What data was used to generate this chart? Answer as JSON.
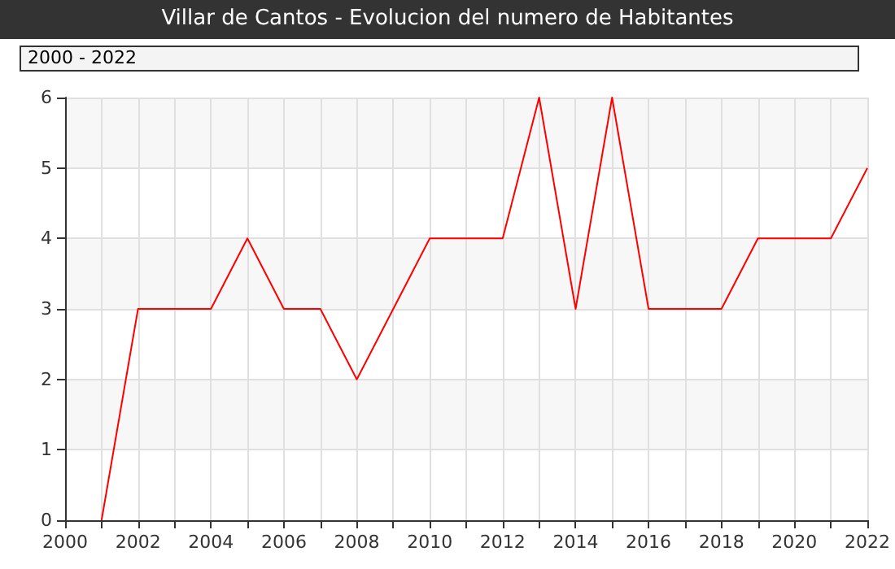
{
  "chart_data": {
    "type": "line",
    "title": "Villar de Cantos - Evolucion del numero de Habitantes",
    "annotations": [
      "2000 - 2022"
    ],
    "x": [
      2001,
      2002,
      2003,
      2004,
      2005,
      2006,
      2007,
      2008,
      2009,
      2010,
      2011,
      2012,
      2013,
      2014,
      2015,
      2016,
      2017,
      2018,
      2019,
      2020,
      2021,
      2022
    ],
    "series": [
      {
        "color": "#ff0000",
        "values": [
          0,
          3,
          3,
          3,
          4,
          3,
          3,
          2,
          3,
          4,
          4,
          4,
          6,
          3,
          6,
          3,
          3,
          3,
          4,
          4,
          4,
          5
        ]
      }
    ],
    "xlim": [
      2000,
      2022
    ],
    "xticks": [
      2000,
      {
        "value": 2001,
        "label": null
      },
      2002,
      {
        "value": 2003,
        "label": null
      },
      2004,
      {
        "value": 2005,
        "label": null
      },
      2006,
      {
        "value": 2007,
        "label": null
      },
      2008,
      {
        "value": 2009,
        "label": null
      },
      2010,
      {
        "value": 2011,
        "label": null
      },
      2012,
      {
        "value": 2013,
        "label": null
      },
      2014,
      {
        "value": 2015,
        "label": null
      },
      2016,
      {
        "value": 2017,
        "label": null
      },
      2018,
      {
        "value": 2019,
        "label": null
      },
      2020,
      {
        "value": 2021,
        "label": null
      },
      2022
    ],
    "ylim": [
      0,
      6
    ],
    "yticks": [
      0,
      1,
      2,
      3,
      4,
      5,
      6
    ],
    "grid": true,
    "marker": "none",
    "line_style": "solid"
  }
}
